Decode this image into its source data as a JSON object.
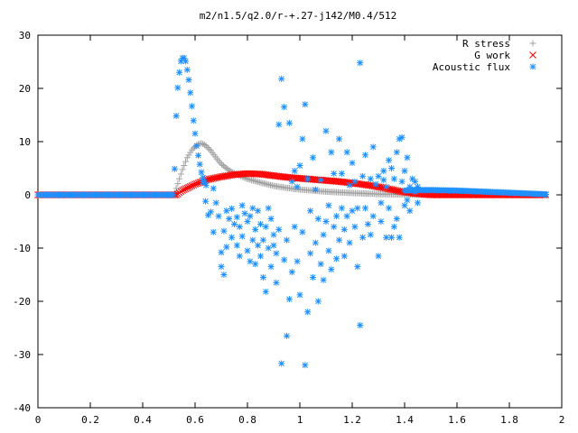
{
  "chart_data": {
    "type": "scatter",
    "title": "m2/n1.5/q2.0/r-+.27-j142/M0.4/512",
    "xlabel": "",
    "ylabel": "",
    "xlim": [
      0,
      2
    ],
    "ylim": [
      -40,
      30
    ],
    "x_ticks": [
      0,
      0.2,
      0.4,
      0.6,
      0.8,
      1,
      1.2,
      1.4,
      1.6,
      1.8,
      2
    ],
    "x_tick_labels": [
      "0",
      "0.2",
      "0.4",
      "0.6",
      "0.8",
      "1",
      "1.2",
      "1.4",
      "1.6",
      "1.8",
      "2"
    ],
    "y_ticks": [
      -40,
      -30,
      -20,
      -10,
      0,
      10,
      20,
      30
    ],
    "y_tick_labels": [
      "-40",
      "-30",
      "-20",
      "-10",
      "0",
      "10",
      "20",
      "30"
    ],
    "grid": false,
    "legend_position": "top-right",
    "series": [
      {
        "name": "R stress",
        "marker": "plus",
        "color": "#a0a0a0",
        "curve": [
          [
            0,
            0
          ],
          [
            0.52,
            0
          ],
          [
            0.53,
            1.5
          ],
          [
            0.55,
            4.5
          ],
          [
            0.57,
            7
          ],
          [
            0.59,
            8.6
          ],
          [
            0.61,
            9.5
          ],
          [
            0.625,
            9.7
          ],
          [
            0.64,
            9.3
          ],
          [
            0.66,
            8.3
          ],
          [
            0.68,
            7.0
          ],
          [
            0.7,
            5.8
          ],
          [
            0.73,
            4.6
          ],
          [
            0.76,
            3.8
          ],
          [
            0.8,
            3.0
          ],
          [
            0.85,
            2.3
          ],
          [
            0.9,
            1.7
          ],
          [
            0.95,
            1.3
          ],
          [
            1.0,
            1.0
          ],
          [
            1.1,
            0.6
          ],
          [
            1.2,
            0.35
          ],
          [
            1.3,
            0.15
          ],
          [
            1.4,
            0.05
          ],
          [
            1.5,
            0
          ],
          [
            1.94,
            0
          ]
        ]
      },
      {
        "name": "G work",
        "marker": "x",
        "color": "#ff0000",
        "curve": [
          [
            0,
            0
          ],
          [
            0.53,
            0
          ],
          [
            0.55,
            0.8
          ],
          [
            0.6,
            2.0
          ],
          [
            0.65,
            2.9
          ],
          [
            0.7,
            3.4
          ],
          [
            0.75,
            3.8
          ],
          [
            0.8,
            4.0
          ],
          [
            0.85,
            3.9
          ],
          [
            0.9,
            3.6
          ],
          [
            0.95,
            3.3
          ],
          [
            1.0,
            3.1
          ],
          [
            1.05,
            2.9
          ],
          [
            1.1,
            2.7
          ],
          [
            1.15,
            2.5
          ],
          [
            1.2,
            2.2
          ],
          [
            1.25,
            1.9
          ],
          [
            1.3,
            1.5
          ],
          [
            1.35,
            1.0
          ],
          [
            1.4,
            0.5
          ],
          [
            1.45,
            0.2
          ],
          [
            1.5,
            0
          ],
          [
            1.94,
            0
          ]
        ]
      },
      {
        "name": "Acoustic flux",
        "marker": "star",
        "color": "#1e90ff",
        "curve": [
          [
            0,
            0
          ],
          [
            0.52,
            0
          ],
          [
            0.525,
            12.2
          ],
          [
            0.535,
            21
          ],
          [
            0.545,
            25
          ],
          [
            0.555,
            26
          ],
          [
            0.565,
            25
          ],
          [
            0.575,
            22
          ],
          [
            0.585,
            18
          ],
          [
            0.595,
            13.5
          ],
          [
            0.605,
            9.5
          ],
          [
            0.615,
            6.5
          ],
          [
            0.625,
            4.0
          ],
          [
            0.635,
            2.5
          ],
          [
            0.645,
            1.5
          ]
        ],
        "tail_curve": [
          [
            1.4,
            0.8
          ],
          [
            1.45,
            0.9
          ],
          [
            1.5,
            0.9
          ],
          [
            1.6,
            0.8
          ],
          [
            1.7,
            0.6
          ],
          [
            1.8,
            0.4
          ],
          [
            1.94,
            0.1
          ]
        ],
        "scatter": [
          [
            0.63,
            2.5
          ],
          [
            0.64,
            -1.2
          ],
          [
            0.65,
            -3.8
          ],
          [
            0.66,
            -3.2
          ],
          [
            0.67,
            1.2
          ],
          [
            0.67,
            -7.0
          ],
          [
            0.68,
            -1.5
          ],
          [
            0.69,
            -4.0
          ],
          [
            0.7,
            -13.5
          ],
          [
            0.7,
            -10.8
          ],
          [
            0.71,
            -15.0
          ],
          [
            0.71,
            -6.8
          ],
          [
            0.72,
            -3.0
          ],
          [
            0.72,
            -9.8
          ],
          [
            0.73,
            -4.5
          ],
          [
            0.74,
            -2.6
          ],
          [
            0.74,
            -8.0
          ],
          [
            0.75,
            -5.5
          ],
          [
            0.76,
            -9.5
          ],
          [
            0.76,
            -4.2
          ],
          [
            0.77,
            -11.5
          ],
          [
            0.77,
            -6.0
          ],
          [
            0.78,
            -2.0
          ],
          [
            0.78,
            -7.8
          ],
          [
            0.79,
            -3.5
          ],
          [
            0.8,
            -5.0
          ],
          [
            0.8,
            -10.5
          ],
          [
            0.81,
            -12.5
          ],
          [
            0.81,
            -4.0
          ],
          [
            0.82,
            -2.5
          ],
          [
            0.82,
            -8.5
          ],
          [
            0.83,
            -6.5
          ],
          [
            0.83,
            -13.0
          ],
          [
            0.84,
            -3.0
          ],
          [
            0.84,
            -9.5
          ],
          [
            0.85,
            -5.5
          ],
          [
            0.85,
            -11.5
          ],
          [
            0.86,
            -15.5
          ],
          [
            0.86,
            -8.5
          ],
          [
            0.87,
            -18.2
          ],
          [
            0.87,
            -6.0
          ],
          [
            0.88,
            -10.0
          ],
          [
            0.88,
            -2.5
          ],
          [
            0.89,
            -4.5
          ],
          [
            0.89,
            -13.5
          ],
          [
            0.9,
            -7.5
          ],
          [
            0.9,
            -9.5
          ],
          [
            0.91,
            -11.0
          ],
          [
            0.91,
            -16.5
          ],
          [
            0.92,
            13.2
          ],
          [
            0.92,
            -6.5
          ],
          [
            0.93,
            21.8
          ],
          [
            0.93,
            -31.7
          ],
          [
            0.94,
            -12.2
          ],
          [
            0.94,
            16.5
          ],
          [
            0.95,
            -26.5
          ],
          [
            0.95,
            -8.5
          ],
          [
            0.96,
            13.5
          ],
          [
            0.96,
            -19.6
          ],
          [
            0.97,
            2.5
          ],
          [
            0.97,
            -14.5
          ],
          [
            0.98,
            -6.0
          ],
          [
            0.98,
            4.5
          ],
          [
            0.99,
            -12.5
          ],
          [
            0.99,
            1.5
          ],
          [
            1.0,
            -18.8
          ],
          [
            1.0,
            5.5
          ],
          [
            1.01,
            -7.0
          ],
          [
            1.01,
            10.5
          ],
          [
            1.02,
            17.0
          ],
          [
            1.02,
            -32.0
          ],
          [
            1.03,
            -22.0
          ],
          [
            1.03,
            3.0
          ],
          [
            1.04,
            -11.0
          ],
          [
            1.04,
            -3.0
          ],
          [
            1.05,
            -15.5
          ],
          [
            1.05,
            7.0
          ],
          [
            1.06,
            -9.0
          ],
          [
            1.06,
            1.0
          ],
          [
            1.07,
            -4.5
          ],
          [
            1.07,
            -20.0
          ],
          [
            1.08,
            -13.0
          ],
          [
            1.08,
            2.8
          ],
          [
            1.09,
            -7.5
          ],
          [
            1.09,
            -16.0
          ],
          [
            1.1,
            -5.0
          ],
          [
            1.1,
            12.0
          ],
          [
            1.11,
            -10.5
          ],
          [
            1.11,
            -2.0
          ],
          [
            1.12,
            -14.0
          ],
          [
            1.12,
            8.0
          ],
          [
            1.13,
            -6.0
          ],
          [
            1.13,
            4.0
          ],
          [
            1.14,
            -12.0
          ],
          [
            1.14,
            -4.0
          ],
          [
            1.15,
            10.5
          ],
          [
            1.15,
            -8.5
          ],
          [
            1.16,
            4.0
          ],
          [
            1.16,
            -2.5
          ],
          [
            1.17,
            -11.5
          ],
          [
            1.17,
            -6.5
          ],
          [
            1.18,
            8.0
          ],
          [
            1.18,
            -4.0
          ],
          [
            1.19,
            1.8
          ],
          [
            1.19,
            -9.0
          ],
          [
            1.2,
            -3.0
          ],
          [
            1.2,
            6.0
          ],
          [
            1.21,
            -6.0
          ],
          [
            1.21,
            2.5
          ],
          [
            1.22,
            -2.5
          ],
          [
            1.22,
            -13.5
          ],
          [
            1.23,
            24.8
          ],
          [
            1.23,
            -24.5
          ],
          [
            1.24,
            -8.0
          ],
          [
            1.24,
            3.5
          ],
          [
            1.25,
            -2.5
          ],
          [
            1.25,
            7.5
          ],
          [
            1.26,
            -5.5
          ],
          [
            1.27,
            3.0
          ],
          [
            1.27,
            -7.5
          ],
          [
            1.28,
            9.0
          ],
          [
            1.28,
            -4.0
          ],
          [
            1.29,
            2.0
          ],
          [
            1.3,
            -11.5
          ],
          [
            1.3,
            3.5
          ],
          [
            1.31,
            -5.0
          ],
          [
            1.31,
            -1.5
          ],
          [
            1.32,
            2.8
          ],
          [
            1.32,
            4.5
          ],
          [
            1.33,
            -8.0
          ],
          [
            1.33,
            1.5
          ],
          [
            1.34,
            6.5
          ],
          [
            1.34,
            -2.5
          ],
          [
            1.35,
            5.0
          ],
          [
            1.35,
            -8.0
          ],
          [
            1.36,
            -6.0
          ],
          [
            1.36,
            3.0
          ],
          [
            1.37,
            8.0
          ],
          [
            1.37,
            -4.5
          ],
          [
            1.38,
            10.5
          ],
          [
            1.38,
            -8.0
          ],
          [
            1.39,
            2.5
          ],
          [
            1.39,
            10.8
          ],
          [
            1.4,
            4.5
          ],
          [
            1.4,
            -2.0
          ],
          [
            1.41,
            7.0
          ],
          [
            1.41,
            -1.0
          ],
          [
            1.42,
            1.5
          ],
          [
            1.42,
            -3.0
          ],
          [
            1.43,
            1.0
          ],
          [
            1.43,
            3.0
          ],
          [
            1.44,
            2.5
          ],
          [
            1.44,
            0.5
          ],
          [
            1.45,
            1.5
          ],
          [
            1.45,
            -1.5
          ]
        ]
      }
    ]
  }
}
